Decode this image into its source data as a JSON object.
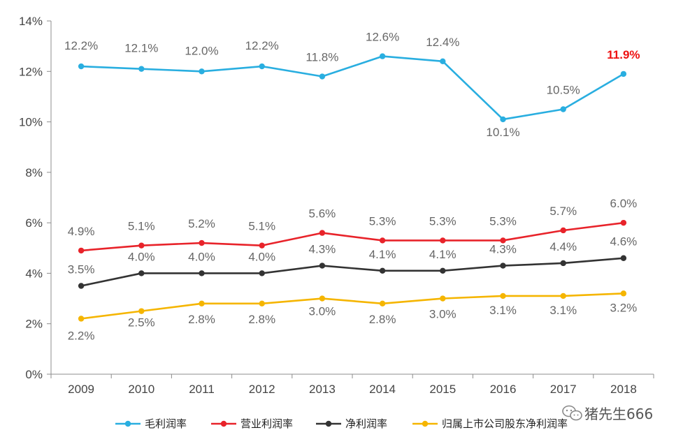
{
  "chart_data": {
    "type": "line",
    "title": "",
    "xlabel": "",
    "ylabel": "",
    "categories": [
      "2009",
      "2010",
      "2011",
      "2012",
      "2013",
      "2014",
      "2015",
      "2016",
      "2017",
      "2018"
    ],
    "ylim": [
      0,
      14
    ],
    "yticks": [
      0,
      2,
      4,
      6,
      8,
      10,
      12,
      14
    ],
    "ytick_labels": [
      "0%",
      "2%",
      "4%",
      "6%",
      "8%",
      "10%",
      "12%",
      "14%"
    ],
    "grid": false,
    "legend_position": "bottom",
    "series": [
      {
        "name": "毛利润率",
        "color": "#29aee0",
        "values": [
          12.2,
          12.1,
          12.0,
          12.2,
          11.8,
          12.6,
          12.4,
          10.1,
          10.5,
          11.9
        ],
        "labels": [
          "12.2%",
          "12.1%",
          "12.0%",
          "12.2%",
          "11.8%",
          "12.6%",
          "12.4%",
          "10.1%",
          "10.5%",
          "11.9%"
        ],
        "highlight_last": true,
        "highlight_color": "#ee1111"
      },
      {
        "name": "营业利润率",
        "color": "#e8232a",
        "values": [
          4.9,
          5.1,
          5.2,
          5.1,
          5.6,
          5.3,
          5.3,
          5.3,
          5.7,
          6.0
        ],
        "labels": [
          "4.9%",
          "5.1%",
          "5.2%",
          "5.1%",
          "5.6%",
          "5.3%",
          "5.3%",
          "5.3%",
          "5.7%",
          "6.0%"
        ]
      },
      {
        "name": "净利润率",
        "color": "#333333",
        "values": [
          3.5,
          4.0,
          4.0,
          4.0,
          4.3,
          4.1,
          4.1,
          4.3,
          4.4,
          4.6
        ],
        "labels": [
          "3.5%",
          "4.0%",
          "4.0%",
          "4.0%",
          "4.3%",
          "4.1%",
          "4.1%",
          "4.3%",
          "4.4%",
          "4.6%"
        ]
      },
      {
        "name": "归属上市公司股东净利润率",
        "color": "#f5b500",
        "values": [
          2.2,
          2.5,
          2.8,
          2.8,
          3.0,
          2.8,
          3.0,
          3.1,
          3.1,
          3.2
        ],
        "labels": [
          "2.2%",
          "2.5%",
          "2.8%",
          "2.8%",
          "3.0%",
          "2.8%",
          "3.0%",
          "3.1%",
          "3.1%",
          "3.2%"
        ]
      }
    ]
  },
  "watermark": {
    "text": "猪先生666",
    "icon": "wechat-icon"
  }
}
